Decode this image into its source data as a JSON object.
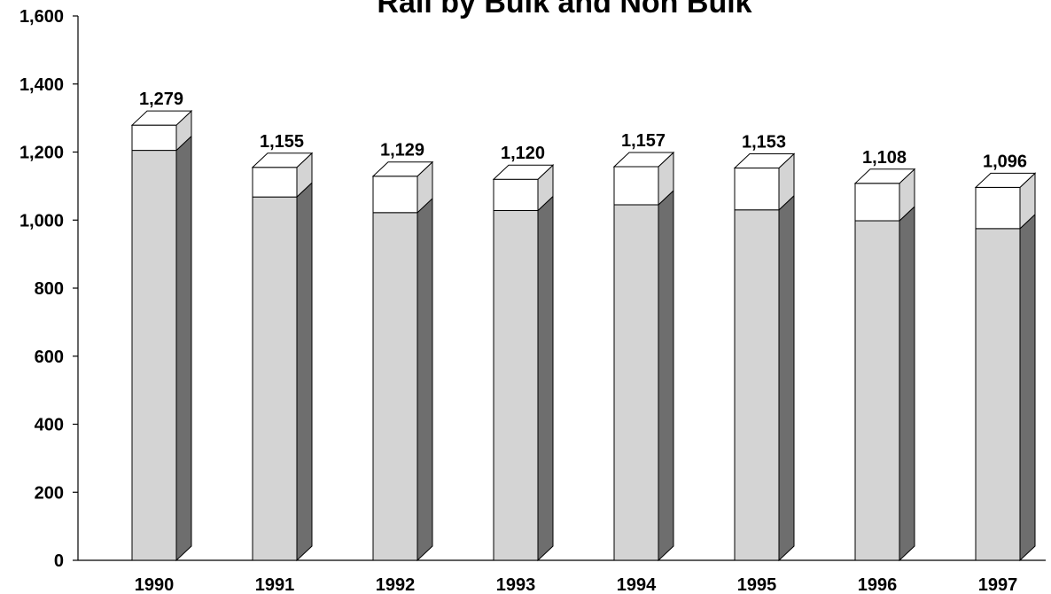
{
  "chart_data": {
    "type": "bar",
    "title": "Rail by Bulk and Non Bulk",
    "xlabel": "",
    "ylabel": "",
    "categories": [
      "1990",
      "1991",
      "1992",
      "1993",
      "1994",
      "1995",
      "1996",
      "1997"
    ],
    "series": [
      {
        "values": [
          1205,
          1068,
          1022,
          1028,
          1045,
          1030,
          998,
          975
        ]
      },
      {
        "values": [
          74,
          87,
          107,
          92,
          112,
          123,
          110,
          121
        ]
      }
    ],
    "totals": [
      1279,
      1155,
      1129,
      1120,
      1157,
      1153,
      1108,
      1096
    ],
    "total_labels": [
      "1,279",
      "1,155",
      "1,129",
      "1,120",
      "1,157",
      "1,153",
      "1,108",
      "1,096"
    ],
    "ylim": [
      0,
      1600
    ],
    "yticks": [
      0,
      200,
      400,
      600,
      800,
      1000,
      1200,
      1400,
      1600
    ],
    "ytick_labels": [
      "0",
      "200",
      "400",
      "600",
      "800",
      "1,000",
      "1,200",
      "1,400",
      "1,600"
    ],
    "grid": false,
    "legend": "none",
    "colors": {
      "bulk_front": "#d4d4d4",
      "bulk_side": "#6e6e6e",
      "nonbulk_front": "#ffffff",
      "nonbulk_side": "#d4d4d4",
      "top_face": "#ffffff",
      "outline": "#000000"
    }
  }
}
